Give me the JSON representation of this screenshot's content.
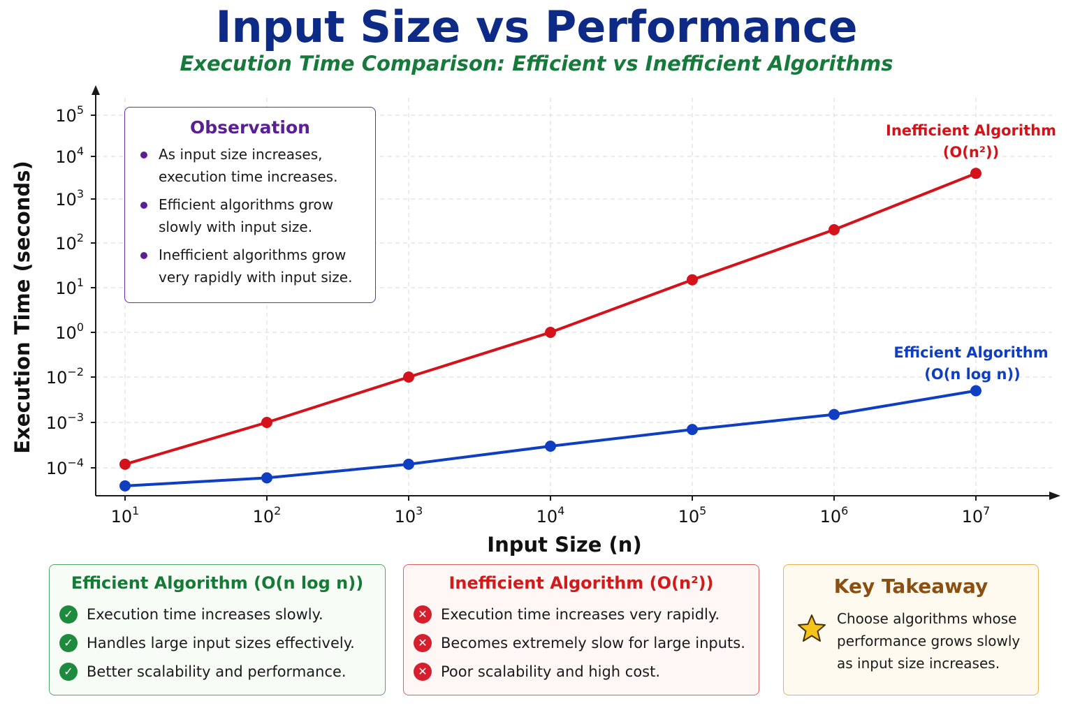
{
  "title": "Input Size vs Performance",
  "subtitle": "Execution Time Comparison: Efficient vs Inefficient Algorithms",
  "colors": {
    "efficient": "#0f3fc0",
    "inefficient": "#d4121a",
    "title": "#0d2b86",
    "subtitle": "#157a3a",
    "observation": "#5a1f96"
  },
  "chart_data": {
    "type": "line",
    "title": "Input Size vs Performance",
    "subtitle": "Execution Time Comparison: Efficient vs Inefficient Algorithms",
    "xlabel": "Input Size (n)",
    "ylabel": "Execution Time (seconds)",
    "x_scale": "log",
    "y_scale": "log",
    "x_ticks": [
      "10^1",
      "10^2",
      "10^3",
      "10^4",
      "10^5",
      "10^6",
      "10^7"
    ],
    "y_ticks": [
      "10^-4",
      "10^-3",
      "10^-2",
      "10^0",
      "10^1",
      "10^2",
      "10^3",
      "10^4",
      "10^5"
    ],
    "grid": true,
    "x": [
      10,
      100,
      1000,
      10000,
      100000,
      1000000,
      10000000
    ],
    "series": [
      {
        "name": "Inefficient Algorithm",
        "name_line2": "(O(n²))",
        "color": "#d4121a",
        "values": [
          0.00012,
          0.001,
          0.01,
          1,
          15,
          200,
          4000
        ]
      },
      {
        "name": "Efficient Algorithm",
        "name_line2": "(O(n log n))",
        "color": "#0f3fc0",
        "values": [
          4e-05,
          6e-05,
          0.00012,
          0.0003,
          0.0007,
          0.0015,
          0.005
        ]
      }
    ]
  },
  "observation": {
    "heading": "Observation",
    "items": [
      "As input size increases, execution time increases.",
      "Efficient algorithms grow slowly with input size.",
      "Inefficient algorithms grow very rapidly with input size."
    ]
  },
  "cards": {
    "efficient": {
      "heading": "Efficient Algorithm (O(n log n))",
      "icon": "check-circle-icon",
      "items": [
        "Execution time increases slowly.",
        "Handles large input sizes effectively.",
        "Better scalability and performance."
      ]
    },
    "inefficient": {
      "heading": "Inefficient Algorithm (O(n²))",
      "icon": "x-circle-icon",
      "items": [
        "Execution time increases very rapidly.",
        "Becomes extremely slow for large inputs.",
        "Poor scalability and high cost."
      ]
    },
    "key": {
      "heading": "Key Takeaway",
      "icon": "star-icon",
      "text": "Choose algorithms whose performance grows slowly as input size increases."
    }
  }
}
